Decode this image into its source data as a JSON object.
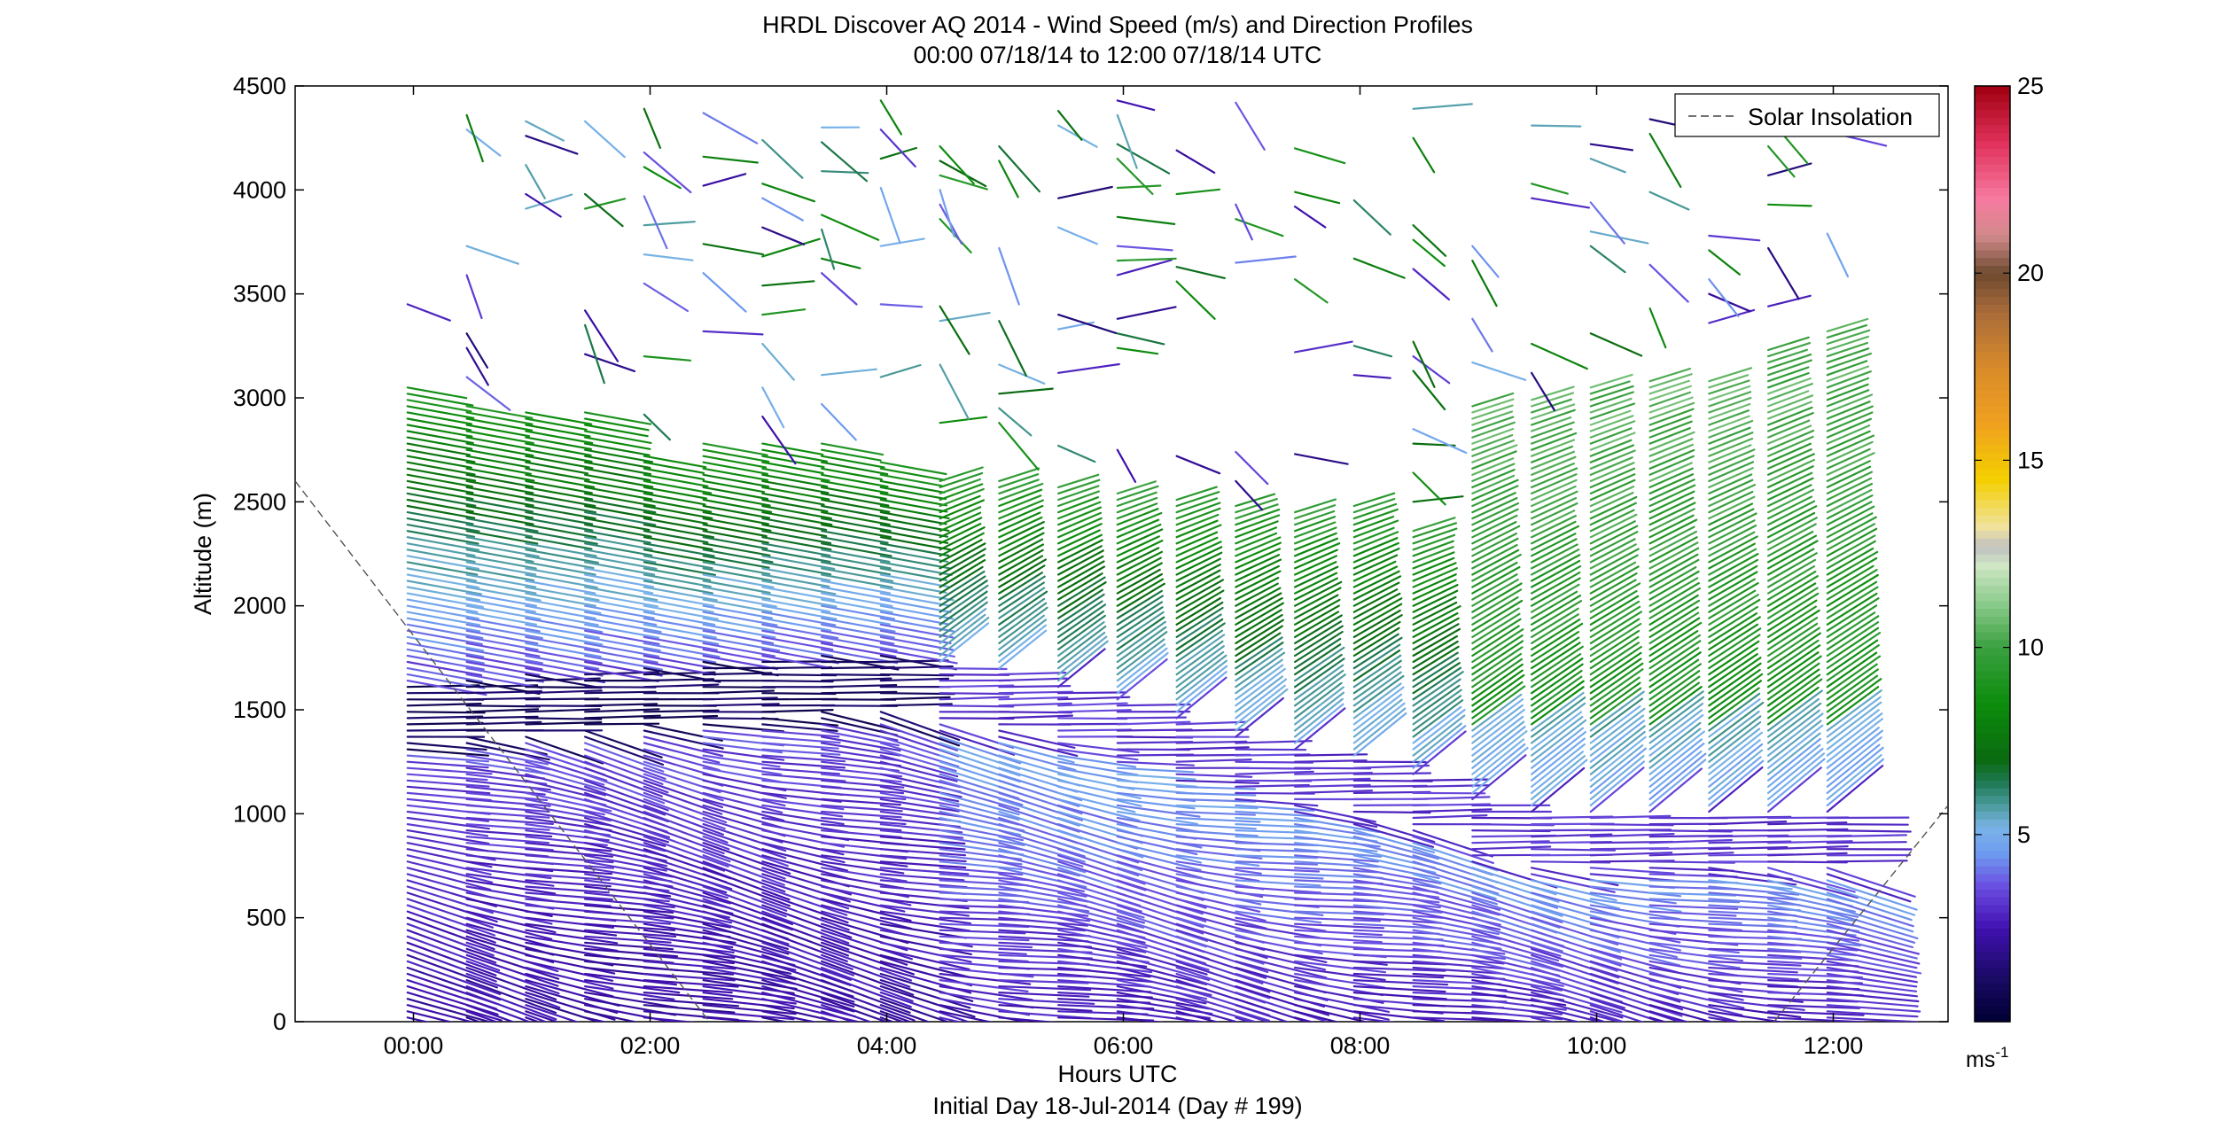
{
  "chart_data": {
    "type": "wind-barb-profile",
    "title": "HRDL Discover AQ 2014 - Wind Speed (m/s) and Direction Profiles",
    "subtitle": "00:00 07/18/14 to 12:00 07/18/14  UTC",
    "xlabel": "Hours UTC",
    "xlabel2": "Initial Day 18-Jul-2014 (Day # 199)",
    "ylabel": "Altitude (m)",
    "xlim": [
      -1.0,
      12.97
    ],
    "ylim": [
      0,
      4500
    ],
    "xticks": [
      0,
      2,
      4,
      6,
      8,
      10,
      12
    ],
    "xtick_labels": [
      "00:00",
      "02:00",
      "04:00",
      "06:00",
      "08:00",
      "10:00",
      "12:00"
    ],
    "yticks": [
      0,
      500,
      1000,
      1500,
      2000,
      2500,
      3000,
      3500,
      4000,
      4500
    ],
    "ytick_labels": [
      "0",
      "500",
      "1000",
      "1500",
      "2000",
      "2500",
      "3000",
      "3500",
      "4000",
      "4500"
    ],
    "legend": {
      "position": "top-right",
      "entries": [
        "Solar Insolation"
      ]
    },
    "colorbar": {
      "label": "ms-1",
      "label_main": "ms",
      "label_sup": "-1",
      "range": [
        0,
        25
      ],
      "ticks": [
        5,
        10,
        15,
        20,
        25
      ],
      "tick_labels": [
        "5",
        "10",
        "15",
        "20",
        "25"
      ],
      "stops": [
        [
          0.0,
          "#000033"
        ],
        [
          1.2,
          "#1a0a66"
        ],
        [
          2.5,
          "#4010b0"
        ],
        [
          3.6,
          "#6a4ce0"
        ],
        [
          4.5,
          "#6e9bf0"
        ],
        [
          5.2,
          "#7ab4e8"
        ],
        [
          5.8,
          "#4a9a9a"
        ],
        [
          6.4,
          "#1f7a55"
        ],
        [
          7.0,
          "#0a6a10"
        ],
        [
          8.5,
          "#0c8c0c"
        ],
        [
          10.0,
          "#3aa040"
        ],
        [
          11.2,
          "#8ccc8c"
        ],
        [
          12.2,
          "#cfe6c5"
        ],
        [
          12.7,
          "#c0c0c0"
        ],
        [
          13.2,
          "#f0e2a0"
        ],
        [
          14.5,
          "#f4d000"
        ],
        [
          16.0,
          "#f0a020"
        ],
        [
          17.5,
          "#d88a2a"
        ],
        [
          19.0,
          "#a86a3a"
        ],
        [
          20.0,
          "#6e4a30"
        ],
        [
          21.0,
          "#d08a8a"
        ],
        [
          22.0,
          "#f77aa0"
        ],
        [
          23.5,
          "#e0305a"
        ],
        [
          25.0,
          "#a00010"
        ]
      ]
    },
    "solar_insolation": {
      "segments": [
        {
          "x": [
            -1.0,
            2.5
          ],
          "y": [
            2600,
            0
          ]
        },
        {
          "x": [
            11.5,
            12.97
          ],
          "y": [
            0,
            1040
          ]
        }
      ]
    },
    "profile_times": [
      -0.05,
      0.45,
      0.95,
      1.45,
      1.95,
      2.45,
      2.95,
      3.45,
      3.95,
      4.45,
      4.95,
      5.45,
      5.95,
      6.45,
      6.95,
      7.45,
      7.95,
      8.45,
      8.95,
      9.45,
      9.95,
      10.45,
      10.95,
      11.45,
      11.95
    ],
    "altitude_levels_step": 30,
    "profile_top_m": [
      3050,
      2980,
      2950,
      2950,
      2730,
      2780,
      2790,
      2780,
      2700,
      2620,
      2620,
      2580,
      2560,
      2530,
      2480,
      2470,
      2500,
      2380,
      2980,
      3000,
      3050,
      3100,
      3100,
      3250,
      3320
    ],
    "kink_altitude_m": [
      1560,
      1580,
      1600,
      1620,
      1640,
      1660,
      1680,
      1700,
      1700,
      1650,
      1620,
      1550,
      1480,
      1400,
      1300,
      1250,
      1200,
      1130,
      1000,
      950,
      950,
      950,
      950,
      950,
      950
    ]
  }
}
